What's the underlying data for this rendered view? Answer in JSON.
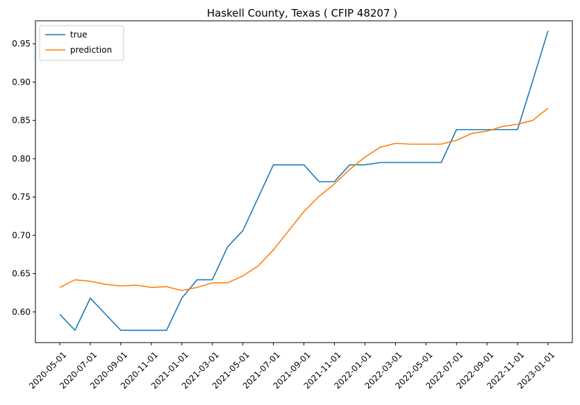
{
  "chart_data": {
    "type": "line",
    "title": "Haskell County, Texas ( CFIP 48207 )",
    "xlabel": "",
    "ylabel": "",
    "x": [
      "2020-05-01",
      "2020-06-01",
      "2020-07-01",
      "2020-08-01",
      "2020-09-01",
      "2020-10-01",
      "2020-11-01",
      "2020-12-01",
      "2021-01-01",
      "2021-02-01",
      "2021-03-01",
      "2021-04-01",
      "2021-05-01",
      "2021-06-01",
      "2021-07-01",
      "2021-08-01",
      "2021-09-01",
      "2021-10-01",
      "2021-11-01",
      "2021-12-01",
      "2022-01-01",
      "2022-02-01",
      "2022-03-01",
      "2022-04-01",
      "2022-05-01",
      "2022-06-01",
      "2022-07-01",
      "2022-08-01",
      "2022-09-01",
      "2022-10-01",
      "2022-11-01",
      "2022-12-01",
      "2023-01-01"
    ],
    "x_ticks": [
      "2020-05-01",
      "2020-07-01",
      "2020-09-01",
      "2020-11-01",
      "2021-01-01",
      "2021-03-01",
      "2021-05-01",
      "2021-07-01",
      "2021-09-01",
      "2021-11-01",
      "2022-01-01",
      "2022-03-01",
      "2022-05-01",
      "2022-07-01",
      "2022-09-01",
      "2022-11-01",
      "2023-01-01"
    ],
    "y_ticks": [
      "0.60",
      "0.65",
      "0.70",
      "0.75",
      "0.80",
      "0.85",
      "0.90",
      "0.95"
    ],
    "ylim": [
      0.56,
      0.98
    ],
    "grid": false,
    "legend": "upper left",
    "series": [
      {
        "name": "true",
        "color": "#1f77b4",
        "values": [
          0.597,
          0.576,
          0.618,
          0.597,
          0.576,
          0.576,
          0.576,
          0.576,
          0.618,
          0.642,
          0.642,
          0.685,
          0.706,
          0.749,
          0.792,
          0.792,
          0.792,
          0.77,
          0.77,
          0.792,
          0.792,
          0.795,
          0.795,
          0.795,
          0.795,
          0.795,
          0.838,
          0.838,
          0.838,
          0.838,
          0.838,
          0.902,
          0.967
        ]
      },
      {
        "name": "prediction",
        "color": "#ff7f0e",
        "values": [
          0.632,
          0.642,
          0.64,
          0.636,
          0.634,
          0.635,
          0.632,
          0.633,
          0.628,
          0.632,
          0.638,
          0.638,
          0.647,
          0.66,
          0.681,
          0.706,
          0.731,
          0.751,
          0.767,
          0.786,
          0.802,
          0.815,
          0.82,
          0.819,
          0.819,
          0.819,
          0.824,
          0.833,
          0.836,
          0.842,
          0.845,
          0.85,
          0.866
        ]
      }
    ]
  }
}
